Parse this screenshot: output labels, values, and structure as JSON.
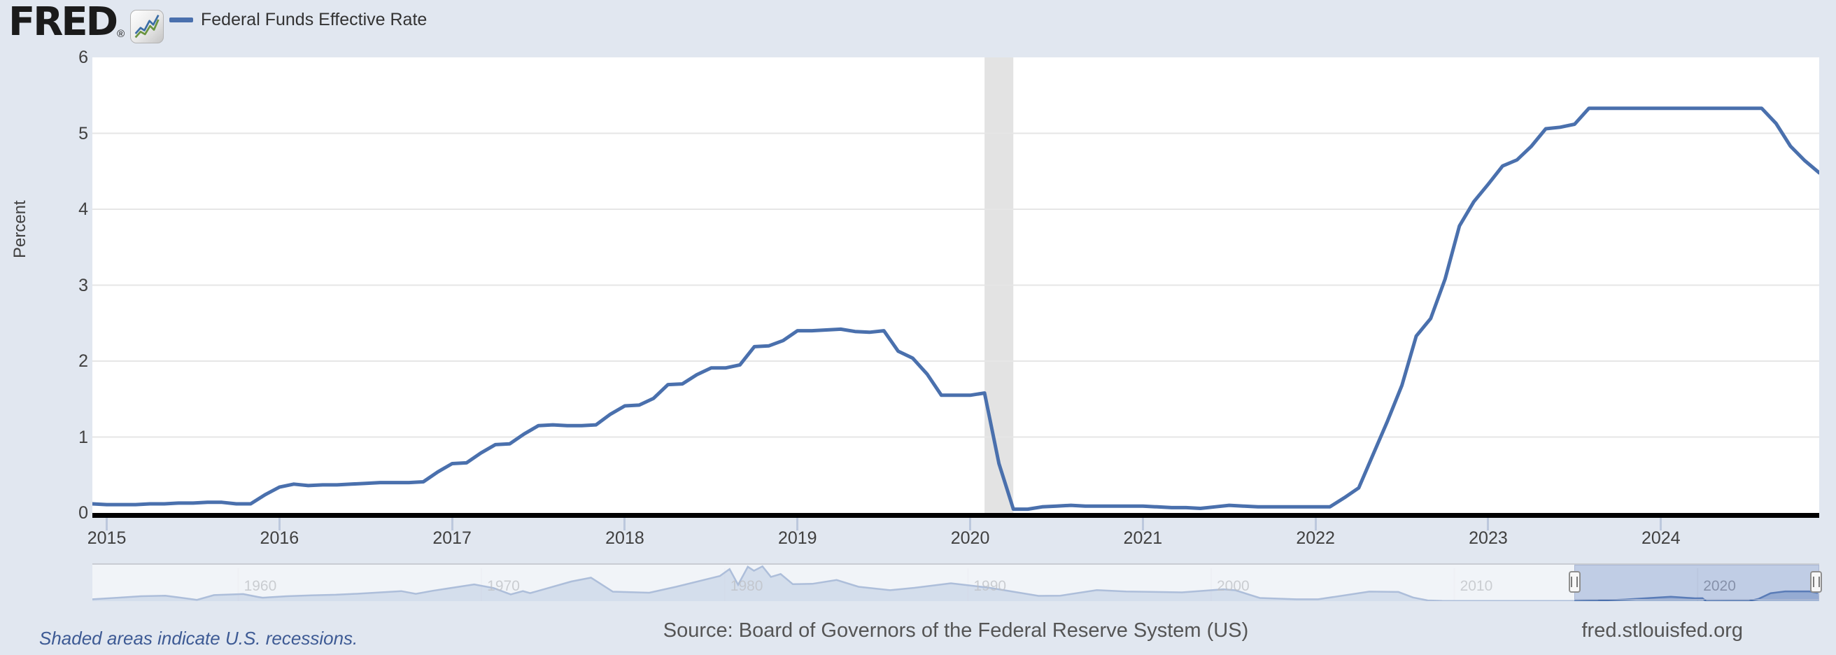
{
  "header": {
    "logo_text": "FRED",
    "registered_mark": "®",
    "logo_icon": "line-chart-icon",
    "legend": {
      "marker_color": "#4a70ad",
      "series_label": "Federal Funds Effective Rate"
    }
  },
  "footer": {
    "recession_note": "Shaded areas indicate U.S. recessions.",
    "source": "Source: Board of Governors of the Federal Reserve System (US)",
    "site": "fred.stlouisfed.org"
  },
  "colors": {
    "page_bg": "#e1e7f0",
    "plot_bg": "#ffffff",
    "line": "#4a70ad",
    "gridline": "#e6e6e6",
    "recession_band": "#e3e3e3",
    "axis_line": "#000000",
    "tick_mark": "#bcc8dd",
    "mini_area_fill": "rgba(74,112,173,0.42)",
    "mini_decade_line": "#d9dee8"
  },
  "chart_data": [
    {
      "type": "line",
      "title": "Federal Funds Effective Rate",
      "ylabel": "Percent",
      "ylim": [
        0,
        6
      ],
      "y_ticks": [
        "0",
        "1",
        "2",
        "3",
        "4",
        "5",
        "6"
      ],
      "x_tick_labels": [
        "2015",
        "2016",
        "2017",
        "2018",
        "2019",
        "2020",
        "2021",
        "2022",
        "2023",
        "2024"
      ],
      "start": "2014-12",
      "frequency": "monthly",
      "grid": "horizontal",
      "legend_position": "top-left",
      "recession_bands": [
        {
          "from": "2020-02",
          "to": "2020-04"
        }
      ],
      "values": [
        0.12,
        0.11,
        0.11,
        0.11,
        0.12,
        0.12,
        0.13,
        0.13,
        0.14,
        0.14,
        0.12,
        0.12,
        0.24,
        0.34,
        0.38,
        0.36,
        0.37,
        0.37,
        0.38,
        0.39,
        0.4,
        0.4,
        0.4,
        0.41,
        0.54,
        0.65,
        0.66,
        0.79,
        0.9,
        0.91,
        1.04,
        1.15,
        1.16,
        1.15,
        1.15,
        1.16,
        1.3,
        1.41,
        1.42,
        1.51,
        1.69,
        1.7,
        1.82,
        1.91,
        1.91,
        1.95,
        2.19,
        2.2,
        2.27,
        2.4,
        2.4,
        2.41,
        2.42,
        2.39,
        2.38,
        2.4,
        2.13,
        2.04,
        1.83,
        1.55,
        1.55,
        1.55,
        1.58,
        0.65,
        0.05,
        0.05,
        0.08,
        0.09,
        0.1,
        0.09,
        0.09,
        0.09,
        0.09,
        0.09,
        0.08,
        0.07,
        0.07,
        0.06,
        0.08,
        0.1,
        0.09,
        0.08,
        0.08,
        0.08,
        0.08,
        0.08,
        0.08,
        0.2,
        0.33,
        0.77,
        1.21,
        1.68,
        2.33,
        2.56,
        3.08,
        3.78,
        4.1,
        4.33,
        4.57,
        4.65,
        4.83,
        5.06,
        5.08,
        5.12,
        5.33,
        5.33,
        5.33,
        5.33,
        5.33,
        5.33,
        5.33,
        5.33,
        5.33,
        5.33,
        5.33,
        5.33,
        5.33,
        5.13,
        4.83,
        4.64,
        4.48
      ]
    },
    {
      "type": "area",
      "role": "range-selector",
      "x_range": [
        1954,
        2025
      ],
      "vmax": 20,
      "decade_labels": [
        "1960",
        "1970",
        "1980",
        "1990",
        "2000",
        "2010",
        "2020"
      ],
      "selected_window": [
        2014.92,
        2025
      ],
      "points": [
        [
          1954,
          1.0
        ],
        [
          1955,
          1.8
        ],
        [
          1956,
          2.7
        ],
        [
          1957,
          3.0
        ],
        [
          1958.3,
          0.7
        ],
        [
          1959,
          3.3
        ],
        [
          1960.2,
          3.9
        ],
        [
          1960.8,
          2.3
        ],
        [
          1961,
          1.9
        ],
        [
          1962,
          2.7
        ],
        [
          1963,
          3.2
        ],
        [
          1964,
          3.5
        ],
        [
          1965,
          4.1
        ],
        [
          1966.7,
          5.5
        ],
        [
          1967.3,
          4.0
        ],
        [
          1968,
          5.7
        ],
        [
          1969.7,
          9.2
        ],
        [
          1970.5,
          7.2
        ],
        [
          1971.2,
          3.7
        ],
        [
          1971.7,
          5.5
        ],
        [
          1972,
          4.4
        ],
        [
          1973.7,
          10.8
        ],
        [
          1974.5,
          12.9
        ],
        [
          1975.4,
          5.2
        ],
        [
          1976.9,
          4.6
        ],
        [
          1978,
          7.9
        ],
        [
          1979.8,
          13.8
        ],
        [
          1980.2,
          17.6
        ],
        [
          1980.55,
          9.0
        ],
        [
          1980.95,
          18.9
        ],
        [
          1981.2,
          16.7
        ],
        [
          1981.55,
          19.1
        ],
        [
          1981.9,
          13.3
        ],
        [
          1982.3,
          14.9
        ],
        [
          1982.8,
          9.3
        ],
        [
          1983.6,
          9.5
        ],
        [
          1984.6,
          11.6
        ],
        [
          1985.5,
          7.9
        ],
        [
          1986.8,
          6.0
        ],
        [
          1987.8,
          7.3
        ],
        [
          1989.3,
          9.8
        ],
        [
          1990.9,
          7.3
        ],
        [
          1992.9,
          2.9
        ],
        [
          1993.8,
          3.0
        ],
        [
          1995.3,
          6.05
        ],
        [
          1996.5,
          5.3
        ],
        [
          1998.8,
          4.8
        ],
        [
          2000.5,
          6.5
        ],
        [
          2001.0,
          5.98
        ],
        [
          2002.0,
          1.73
        ],
        [
          2003.5,
          1.0
        ],
        [
          2004.4,
          1.0
        ],
        [
          2006.5,
          5.25
        ],
        [
          2007.7,
          5.02
        ],
        [
          2008.3,
          2.0
        ],
        [
          2008.9,
          0.4
        ],
        [
          2009.5,
          0.16
        ],
        [
          2011,
          0.1
        ],
        [
          2013,
          0.11
        ],
        [
          2014.9,
          0.12
        ],
        [
          2015.9,
          0.24
        ],
        [
          2017,
          0.9
        ],
        [
          2018.9,
          2.4
        ],
        [
          2019.9,
          1.55
        ],
        [
          2020.2,
          1.58
        ],
        [
          2020.35,
          0.05
        ],
        [
          2021.5,
          0.08
        ],
        [
          2022.1,
          0.08
        ],
        [
          2022.5,
          1.2
        ],
        [
          2023.0,
          4.33
        ],
        [
          2023.6,
          5.33
        ],
        [
          2024.6,
          5.33
        ],
        [
          2024.95,
          4.48
        ]
      ]
    }
  ]
}
